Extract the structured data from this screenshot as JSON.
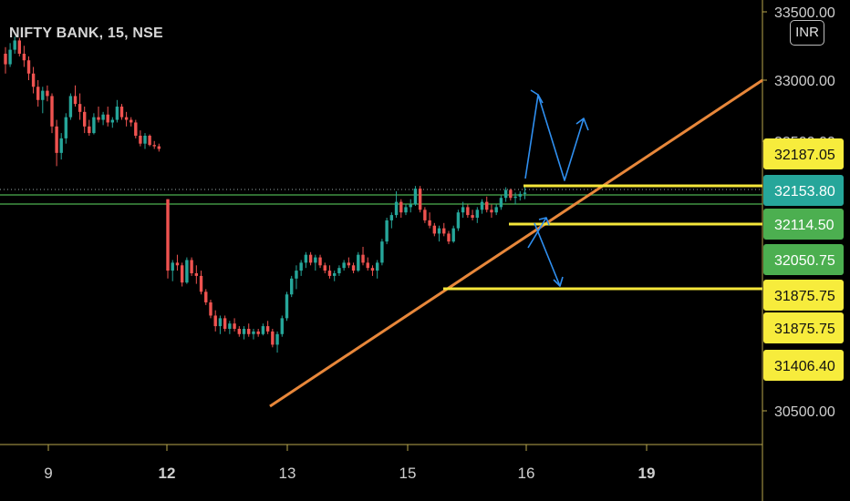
{
  "header": {
    "symbol_title": "NIFTY BANK, 15, NSE",
    "currency": "INR"
  },
  "colors": {
    "up": "#26a69a",
    "down": "#ef5350",
    "trendline": "#e8873a",
    "level": "#f5e63a",
    "arrows": "#2f8ff0",
    "axis": "#b7a64b",
    "tag_yellow": "#f7ec3c",
    "tag_teal": "#26a69a",
    "tag_green": "#4caf50",
    "hline_green": "#4caf50"
  },
  "chart_data": {
    "type": "candlestick",
    "y_axis_ticks": [
      "33500.00",
      "33000.00",
      "32500.00",
      "30500.00"
    ],
    "x_axis_ticks": [
      {
        "label": "9",
        "bold": false
      },
      {
        "label": "12",
        "bold": true
      },
      {
        "label": "13",
        "bold": false
      },
      {
        "label": "15",
        "bold": false
      },
      {
        "label": "16",
        "bold": false
      },
      {
        "label": "19",
        "bold": true
      }
    ],
    "price_tags": [
      {
        "value": "32187.05",
        "color": "yellow"
      },
      {
        "value": "32153.80",
        "color": "teal"
      },
      {
        "value": "32114.50",
        "color": "green"
      },
      {
        "value": "32050.75",
        "color": "green"
      },
      {
        "value": "31875.75",
        "color": "yellow"
      },
      {
        "value": "31875.75",
        "color": "yellow"
      },
      {
        "value": "31406.40",
        "color": "yellow"
      }
    ],
    "candles": [
      [
        33200,
        33250,
        33050,
        33120
      ],
      [
        33120,
        33280,
        33100,
        33230
      ],
      [
        33230,
        33330,
        33200,
        33300
      ],
      [
        33300,
        33320,
        33180,
        33200
      ],
      [
        33200,
        33260,
        33100,
        33150
      ],
      [
        33150,
        33180,
        33000,
        33050
      ],
      [
        33050,
        33100,
        32900,
        32950
      ],
      [
        32950,
        33000,
        32800,
        32850
      ],
      [
        32850,
        32950,
        32750,
        32920
      ],
      [
        32920,
        32960,
        32840,
        32880
      ],
      [
        32880,
        32900,
        32600,
        32650
      ],
      [
        32650,
        32700,
        32350,
        32450
      ],
      [
        32450,
        32600,
        32400,
        32560
      ],
      [
        32560,
        32750,
        32520,
        32720
      ],
      [
        32720,
        32900,
        32700,
        32880
      ],
      [
        32880,
        32960,
        32800,
        32820
      ],
      [
        32820,
        32900,
        32700,
        32760
      ],
      [
        32760,
        32800,
        32600,
        32650
      ],
      [
        32650,
        32700,
        32580,
        32600
      ],
      [
        32600,
        32750,
        32590,
        32720
      ],
      [
        32720,
        32800,
        32680,
        32700
      ],
      [
        32700,
        32760,
        32660,
        32740
      ],
      [
        32740,
        32800,
        32650,
        32680
      ],
      [
        32680,
        32720,
        32640,
        32700
      ],
      [
        32700,
        32850,
        32680,
        32800
      ],
      [
        32800,
        32820,
        32700,
        32720
      ],
      [
        32720,
        32760,
        32650,
        32700
      ],
      [
        32700,
        32720,
        32650,
        32680
      ],
      [
        32680,
        32700,
        32560,
        32580
      ],
      [
        32580,
        32620,
        32500,
        32520
      ],
      [
        32520,
        32600,
        32480,
        32580
      ],
      [
        32580,
        32590,
        32500,
        32510
      ],
      [
        32510,
        32540,
        32480,
        32500
      ],
      [
        32500,
        32520,
        32460,
        32480
      ],
      [
        32100,
        32100,
        31500,
        31560
      ],
      [
        31560,
        31640,
        31480,
        31620
      ],
      [
        31620,
        31680,
        31560,
        31600
      ],
      [
        31600,
        31620,
        31440,
        31470
      ],
      [
        31470,
        31660,
        31460,
        31640
      ],
      [
        31640,
        31660,
        31520,
        31540
      ],
      [
        31540,
        31600,
        31460,
        31520
      ],
      [
        31520,
        31560,
        31380,
        31400
      ],
      [
        31400,
        31420,
        31300,
        31320
      ],
      [
        31320,
        31340,
        31200,
        31220
      ],
      [
        31220,
        31260,
        31100,
        31140
      ],
      [
        31140,
        31220,
        31080,
        31200
      ],
      [
        31200,
        31220,
        31100,
        31120
      ],
      [
        31120,
        31180,
        31080,
        31160
      ],
      [
        31160,
        31200,
        31100,
        31120
      ],
      [
        31120,
        31140,
        31060,
        31080
      ],
      [
        31080,
        31140,
        31040,
        31120
      ],
      [
        31120,
        31160,
        31060,
        31080
      ],
      [
        31080,
        31120,
        31040,
        31100
      ],
      [
        31100,
        31120,
        31060,
        31080
      ],
      [
        31080,
        31160,
        31070,
        31140
      ],
      [
        31140,
        31180,
        31080,
        31100
      ],
      [
        31100,
        31120,
        30980,
        31000
      ],
      [
        31000,
        31100,
        30940,
        31080
      ],
      [
        31080,
        31220,
        31060,
        31200
      ],
      [
        31200,
        31400,
        31180,
        31380
      ],
      [
        31380,
        31520,
        31360,
        31500
      ],
      [
        31500,
        31600,
        31420,
        31560
      ],
      [
        31560,
        31640,
        31520,
        31620
      ],
      [
        31620,
        31700,
        31580,
        31680
      ],
      [
        31680,
        31700,
        31600,
        31620
      ],
      [
        31620,
        31680,
        31560,
        31660
      ],
      [
        31660,
        31680,
        31580,
        31600
      ],
      [
        31600,
        31620,
        31540,
        31560
      ],
      [
        31560,
        31600,
        31500,
        31520
      ],
      [
        31520,
        31560,
        31480,
        31540
      ],
      [
        31540,
        31600,
        31520,
        31580
      ],
      [
        31580,
        31640,
        31560,
        31620
      ],
      [
        31620,
        31660,
        31580,
        31600
      ],
      [
        31600,
        31620,
        31540,
        31560
      ],
      [
        31560,
        31700,
        31550,
        31680
      ],
      [
        31680,
        31740,
        31600,
        31620
      ],
      [
        31620,
        31660,
        31560,
        31580
      ],
      [
        31580,
        31600,
        31520,
        31560
      ],
      [
        31560,
        31640,
        31500,
        31620
      ],
      [
        31620,
        31800,
        31600,
        31780
      ],
      [
        31780,
        31960,
        31760,
        31940
      ],
      [
        31940,
        32000,
        31880,
        31980
      ],
      [
        31980,
        32160,
        31960,
        32080
      ],
      [
        32080,
        32100,
        31960,
        32000
      ],
      [
        32000,
        32060,
        31980,
        32040
      ],
      [
        32040,
        32100,
        32000,
        32060
      ],
      [
        32060,
        32200,
        32050,
        32180
      ],
      [
        32180,
        32200,
        32000,
        32020
      ],
      [
        32020,
        32040,
        31920,
        31940
      ],
      [
        31940,
        32000,
        31880,
        31900
      ],
      [
        31900,
        31920,
        31820,
        31840
      ],
      [
        31840,
        31900,
        31780,
        31880
      ],
      [
        31880,
        31920,
        31820,
        31840
      ],
      [
        31840,
        31860,
        31760,
        31780
      ],
      [
        31780,
        31900,
        31770,
        31880
      ],
      [
        31880,
        32020,
        31860,
        32000
      ],
      [
        32000,
        32080,
        31960,
        32040
      ],
      [
        32040,
        32060,
        31960,
        31980
      ],
      [
        31980,
        32020,
        31940,
        31960
      ],
      [
        31960,
        32040,
        31920,
        32020
      ],
      [
        32020,
        32100,
        31990,
        32080
      ],
      [
        32080,
        32120,
        32000,
        32020
      ],
      [
        32020,
        32060,
        31960,
        32000
      ],
      [
        32000,
        32060,
        31980,
        32040
      ],
      [
        32040,
        32130,
        32020,
        32110
      ],
      [
        32110,
        32190,
        32080,
        32170
      ],
      [
        32170,
        32180,
        32090,
        32110
      ],
      [
        32110,
        32150,
        32060,
        32120
      ],
      [
        32120,
        32160,
        32090,
        32140
      ],
      [
        32140,
        32200,
        32100,
        32150
      ]
    ]
  }
}
